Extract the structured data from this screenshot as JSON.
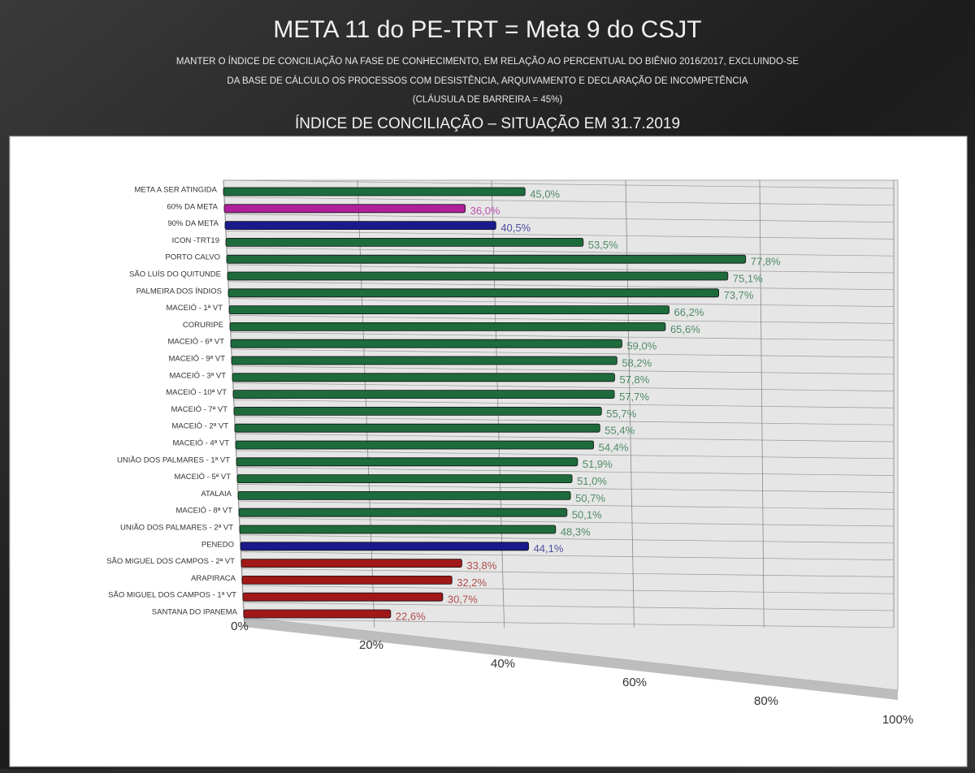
{
  "chart_data": {
    "type": "bar",
    "orientation": "horizontal",
    "title": "META 11 do PE-TRT = Meta 9 do CSJT",
    "subtitle": [
      "MANTER O ÍNDICE DE CONCILIAÇÃO NA FASE DE CONHECIMENTO, EM RELAÇÃO AO PERCENTUAL DO BIÊNIO 2016/2017, EXCLUINDO-SE",
      "DA BASE DE CÁLCULO OS PROCESSOS COM DESISTÊNCIA, ARQUIVAMENTO E DECLARAÇÃO DE INCOMPETÊNCIA",
      "(CLÁUSULA DE BARREIRA = 45%)"
    ],
    "chart_title": "ÍNDICE DE CONCILIAÇÃO – SITUAÇÃO EM 31.7.2019",
    "categories": [
      "META A SER ATINGIDA",
      "60% DA META",
      "90% DA META",
      "ICON -TRT19",
      "PORTO CALVO",
      "SÃO LUÍS DO QUITUNDE",
      "PALMEIRA DOS ÍNDIOS",
      "MACEIÓ - 1ª VT",
      "CORURIPE",
      "MACEIÓ - 6ª VT",
      "MACEIÓ - 9ª VT",
      "MACEIÓ - 3ª VT",
      "MACEIÓ - 10ª VT",
      "MACEIÓ - 7ª VT",
      "MACEIÓ - 2ª VT",
      "MACEIÓ - 4ª VT",
      "UNIÃO DOS PALMARES - 1ª VT",
      "MACEIÓ - 5ª VT",
      "ATALAIA",
      "MACEIÓ - 8ª VT",
      "UNIÃO DOS PALMARES - 2ª VT",
      "PENEDO",
      "SÃO MIGUEL DOS CAMPOS - 2ª VT",
      "ARAPIRACA",
      "SÃO MIGUEL DOS CAMPOS - 1ª VT",
      "SANTANA DO IPANEMA"
    ],
    "values": [
      45.0,
      36.0,
      40.5,
      53.5,
      77.8,
      75.1,
      73.7,
      66.2,
      65.6,
      59.0,
      58.2,
      57.8,
      57.7,
      55.7,
      55.4,
      54.4,
      51.9,
      51.0,
      50.7,
      50.1,
      48.3,
      44.1,
      33.8,
      32.2,
      30.7,
      22.6
    ],
    "value_labels": [
      "45,0%",
      "36,0%",
      "40,5%",
      "53,5%",
      "77,8%",
      "75,1%",
      "73,7%",
      "66,2%",
      "65,6%",
      "59,0%",
      "58,2%",
      "57,8%",
      "57,7%",
      "55,7%",
      "55,4%",
      "54,4%",
      "51,9%",
      "51,0%",
      "50,7%",
      "50,1%",
      "48,3%",
      "44,1%",
      "33,8%",
      "32,2%",
      "30,7%",
      "22,6%"
    ],
    "colors": [
      "#1e6b3c",
      "#b0209a",
      "#1a1a8c",
      "#1e6b3c",
      "#1e6b3c",
      "#1e6b3c",
      "#1e6b3c",
      "#1e6b3c",
      "#1e6b3c",
      "#1e6b3c",
      "#1e6b3c",
      "#1e6b3c",
      "#1e6b3c",
      "#1e6b3c",
      "#1e6b3c",
      "#1e6b3c",
      "#1e6b3c",
      "#1e6b3c",
      "#1e6b3c",
      "#1e6b3c",
      "#1e6b3c",
      "#1a1a8c",
      "#a01818",
      "#a01818",
      "#a01818",
      "#a01818"
    ],
    "xlim": [
      0,
      100
    ],
    "xticks": [
      {
        "value": 0,
        "label": "0%"
      },
      {
        "value": 20,
        "label": "20%"
      },
      {
        "value": 40,
        "label": "40%"
      },
      {
        "value": 60,
        "label": "60%"
      },
      {
        "value": 80,
        "label": "80%"
      },
      {
        "value": 100,
        "label": "100%"
      }
    ],
    "grid": true
  }
}
